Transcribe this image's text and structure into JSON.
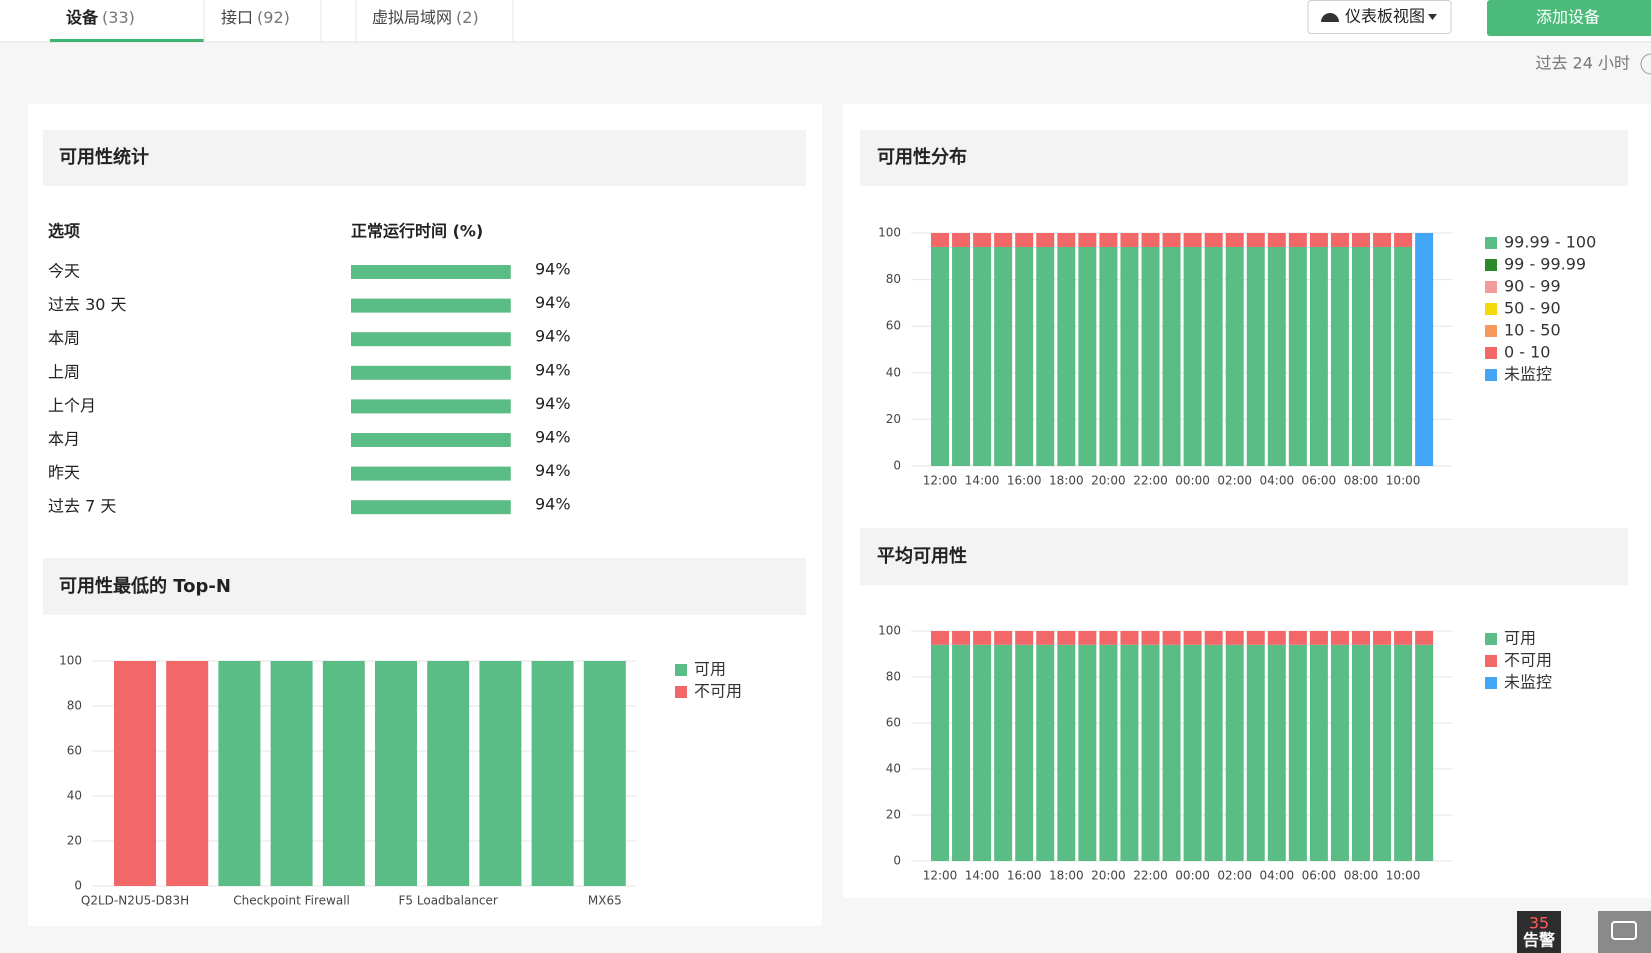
{
  "tabs": [
    {
      "label": "设备",
      "count": "(33)"
    },
    {
      "label": "接口",
      "count": "(92)"
    },
    {
      "label": "虚拟局域网",
      "count": "(2)"
    }
  ],
  "toolbar": {
    "dashboard_view": "仪表板视图",
    "add_device": "添加设备",
    "time_range": "过去 24 小时"
  },
  "availability_stats": {
    "title": "可用性统计",
    "headers": [
      "选项",
      "正常运行时间 (%)"
    ],
    "rows": [
      {
        "label": "今天",
        "value": 94,
        "value_label": "94%"
      },
      {
        "label": "过去 30 天",
        "value": 94,
        "value_label": "94%"
      },
      {
        "label": "本周",
        "value": 94,
        "value_label": "94%"
      },
      {
        "label": "上周",
        "value": 94,
        "value_label": "94%"
      },
      {
        "label": "上个月",
        "value": 94,
        "value_label": "94%"
      },
      {
        "label": "本月",
        "value": 94,
        "value_label": "94%"
      },
      {
        "label": "昨天",
        "value": 94,
        "value_label": "94%"
      },
      {
        "label": "过去 7 天",
        "value": 94,
        "value_label": "94%"
      }
    ]
  },
  "chart_data": [
    {
      "type": "bar",
      "stacked": true,
      "title": "可用性最低的 Top-N",
      "legend": "right",
      "grid": true,
      "categories": [
        "Q2LD-N2U5-D83H",
        null,
        null,
        "Checkpoint Firewall",
        null,
        null,
        "F5 Loadbalancer",
        null,
        null,
        "MX65"
      ],
      "series": [
        {
          "name": "可用",
          "color": "#5bbd86",
          "values": [
            0,
            0,
            100,
            100,
            100,
            100,
            100,
            100,
            100,
            100
          ]
        },
        {
          "name": "不可用",
          "color": "#f26767",
          "values": [
            100,
            100,
            0,
            0,
            0,
            0,
            0,
            0,
            0,
            0
          ]
        }
      ],
      "ylim": [
        0,
        100
      ],
      "yticks": [
        0,
        20,
        40,
        60,
        80,
        100
      ]
    },
    {
      "type": "bar",
      "stacked": true,
      "title": "可用性分布",
      "legend": "right",
      "grid": true,
      "categories": [
        "12:00",
        null,
        "14:00",
        null,
        "16:00",
        null,
        "18:00",
        null,
        "20:00",
        null,
        "22:00",
        null,
        "00:00",
        null,
        "02:00",
        null,
        "04:00",
        null,
        "06:00",
        null,
        "08:00",
        null,
        "10:00",
        null
      ],
      "series": [
        {
          "name": "99.99 - 100",
          "color": "#5bbd86",
          "values": [
            94,
            94,
            94,
            94,
            94,
            94,
            94,
            94,
            94,
            94,
            94,
            94,
            94,
            94,
            94,
            94,
            94,
            94,
            94,
            94,
            94,
            94,
            94,
            0
          ]
        },
        {
          "name": "99 - 99.99",
          "color": "#2a8a2a",
          "values": [
            0,
            0,
            0,
            0,
            0,
            0,
            0,
            0,
            0,
            0,
            0,
            0,
            0,
            0,
            0,
            0,
            0,
            0,
            0,
            0,
            0,
            0,
            0,
            0
          ]
        },
        {
          "name": "90 - 99",
          "color": "#f39a9a",
          "values": [
            0,
            0,
            0,
            0,
            0,
            0,
            0,
            0,
            0,
            0,
            0,
            0,
            0,
            0,
            0,
            0,
            0,
            0,
            0,
            0,
            0,
            0,
            0,
            0
          ]
        },
        {
          "name": "50 - 90",
          "color": "#f5d90a",
          "values": [
            0,
            0,
            0,
            0,
            0,
            0,
            0,
            0,
            0,
            0,
            0,
            0,
            0,
            0,
            0,
            0,
            0,
            0,
            0,
            0,
            0,
            0,
            0,
            0
          ]
        },
        {
          "name": "10 - 50",
          "color": "#f59a5c",
          "values": [
            0,
            0,
            0,
            0,
            0,
            0,
            0,
            0,
            0,
            0,
            0,
            0,
            0,
            0,
            0,
            0,
            0,
            0,
            0,
            0,
            0,
            0,
            0,
            0
          ]
        },
        {
          "name": "0 - 10",
          "color": "#f26767",
          "values": [
            6,
            6,
            6,
            6,
            6,
            6,
            6,
            6,
            6,
            6,
            6,
            6,
            6,
            6,
            6,
            6,
            6,
            6,
            6,
            6,
            6,
            6,
            6,
            0
          ]
        },
        {
          "name": "未监控",
          "color": "#42a5f5",
          "values": [
            0,
            0,
            0,
            0,
            0,
            0,
            0,
            0,
            0,
            0,
            0,
            0,
            0,
            0,
            0,
            0,
            0,
            0,
            0,
            0,
            0,
            0,
            0,
            100
          ]
        }
      ],
      "ylim": [
        0,
        100
      ],
      "yticks": [
        0,
        20,
        40,
        60,
        80,
        100
      ]
    },
    {
      "type": "bar",
      "stacked": true,
      "title": "平均可用性",
      "legend": "right",
      "grid": true,
      "categories": [
        "12:00",
        null,
        "14:00",
        null,
        "16:00",
        null,
        "18:00",
        null,
        "20:00",
        null,
        "22:00",
        null,
        "00:00",
        null,
        "02:00",
        null,
        "04:00",
        null,
        "06:00",
        null,
        "08:00",
        null,
        "10:00",
        null
      ],
      "series": [
        {
          "name": "可用",
          "color": "#5bbd86",
          "values": [
            94,
            94,
            94,
            94,
            94,
            94,
            94,
            94,
            94,
            94,
            94,
            94,
            94,
            94,
            94,
            94,
            94,
            94,
            94,
            94,
            94,
            94,
            94,
            94
          ]
        },
        {
          "name": "不可用",
          "color": "#f26767",
          "values": [
            6,
            6,
            6,
            6,
            6,
            6,
            6,
            6,
            6,
            6,
            6,
            6,
            6,
            6,
            6,
            6,
            6,
            6,
            6,
            6,
            6,
            6,
            6,
            6
          ]
        },
        {
          "name": "未监控",
          "color": "#42a5f5",
          "values": [
            0,
            0,
            0,
            0,
            0,
            0,
            0,
            0,
            0,
            0,
            0,
            0,
            0,
            0,
            0,
            0,
            0,
            0,
            0,
            0,
            0,
            0,
            0,
            0
          ]
        }
      ],
      "ylim": [
        0,
        100
      ],
      "yticks": [
        0,
        20,
        40,
        60,
        80,
        100
      ]
    }
  ],
  "footer": {
    "alarm_count": 35,
    "alarm_label": "告警"
  }
}
